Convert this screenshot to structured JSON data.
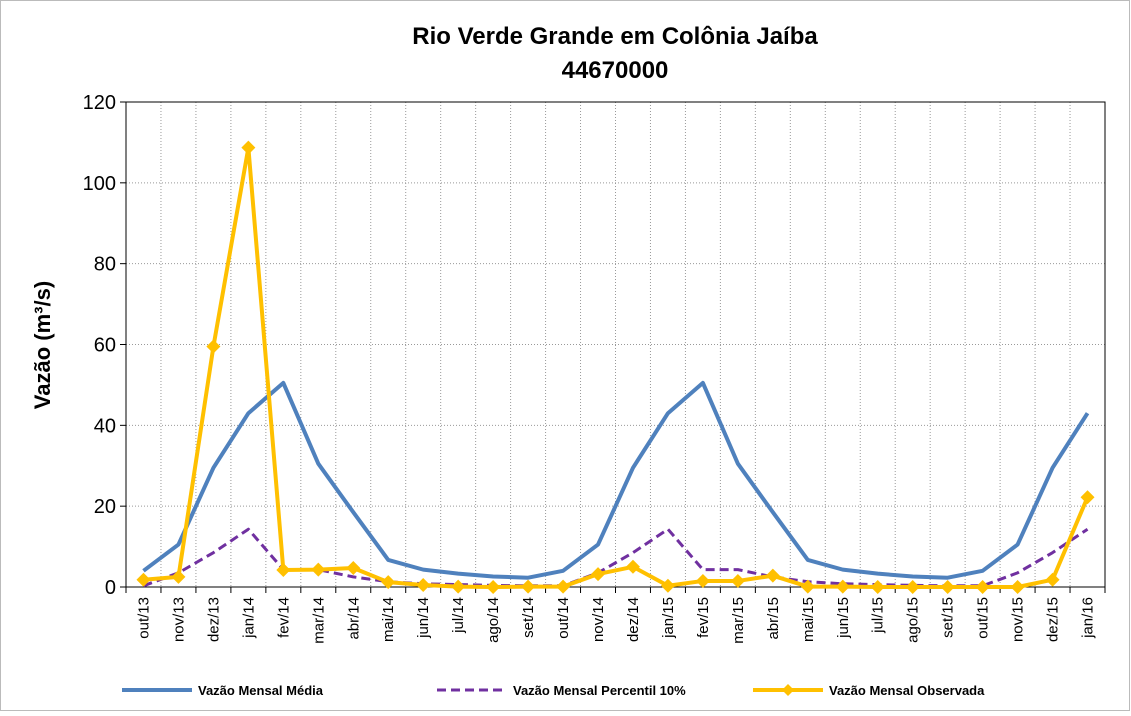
{
  "chart_data": {
    "type": "line",
    "title": "Rio Verde Grande em Colônia Jaíba",
    "subtitle": "44670000",
    "y_label": "Vazão (m³/s)",
    "categories": [
      "out/13",
      "nov/13",
      "dez/13",
      "jan/14",
      "fev/14",
      "mar/14",
      "abr/14",
      "mai/14",
      "jun/14",
      "jul/14",
      "ago/14",
      "set/14",
      "out/14",
      "nov/14",
      "dez/14",
      "jan/15",
      "fev/15",
      "mar/15",
      "abr/15",
      "mai/15",
      "jun/15",
      "jul/15",
      "ago/15",
      "set/15",
      "out/15",
      "nov/15",
      "dez/15",
      "jan/16"
    ],
    "series": [
      {
        "name": "Vazão Mensal Média",
        "color": "#4f81bd",
        "style": "solid",
        "values": [
          4,
          10.5,
          29.5,
          43,
          50.5,
          30.5,
          18.5,
          6.7,
          4.3,
          3.3,
          2.6,
          2.3,
          4,
          10.5,
          29.5,
          43,
          50.5,
          30.5,
          18.5,
          6.7,
          4.3,
          3.3,
          2.6,
          2.3,
          4,
          10.5,
          29.5,
          43
        ]
      },
      {
        "name": "Vazão Mensal Percentil 10%",
        "color": "#7030a0",
        "style": "dashed",
        "values": [
          0.3,
          3.5,
          8.5,
          14.3,
          4.3,
          4.3,
          2.5,
          1.3,
          0.8,
          0.6,
          0.4,
          0.3,
          0.3,
          3.5,
          8.5,
          14.3,
          4.3,
          4.3,
          2.5,
          1.3,
          0.8,
          0.6,
          0.4,
          0.3,
          0.3,
          3.5,
          8.5,
          14.3
        ]
      },
      {
        "name": "Vazão Mensal Observada",
        "color": "#ffc000",
        "style": "marker",
        "values": [
          1.8,
          2.5,
          59.5,
          108.7,
          4.2,
          4.3,
          4.7,
          1.2,
          0.5,
          0.1,
          0,
          0.1,
          0.1,
          3.2,
          5,
          0.3,
          1.5,
          1.5,
          2.8,
          0.1,
          0.1,
          0,
          0,
          0,
          0,
          0,
          1.8,
          22.2
        ]
      }
    ],
    "ylim": [
      0,
      120
    ],
    "yticks": [
      0,
      20,
      40,
      60,
      80,
      100,
      120
    ],
    "grid": true,
    "legend": "bottom"
  }
}
